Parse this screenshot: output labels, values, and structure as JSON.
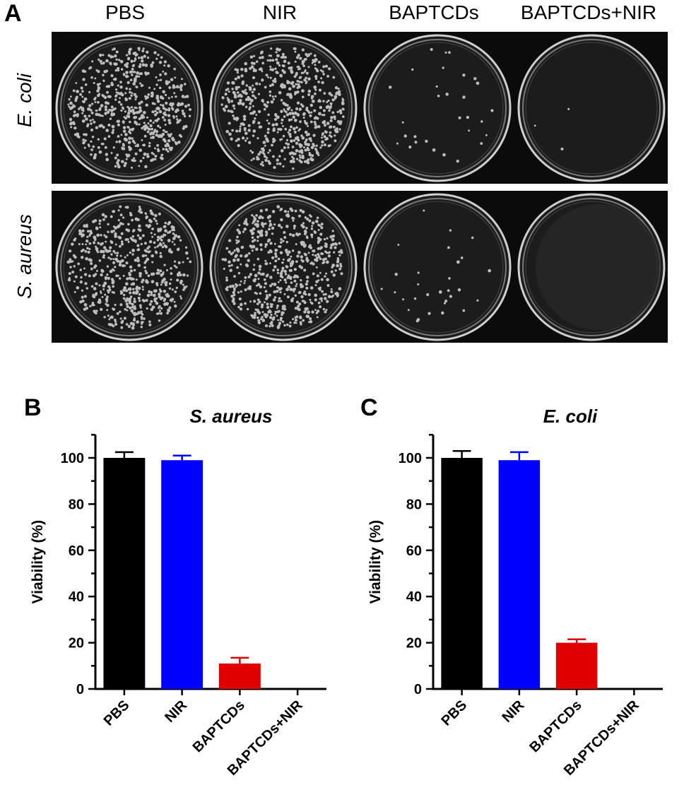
{
  "panel_a": {
    "letter": "A",
    "columns": [
      "PBS",
      "NIR",
      "BAPTCDs",
      "BAPTCDs+NIR"
    ],
    "rows": [
      {
        "label": "E. coli",
        "colony_density": [
          "dense",
          "dense",
          "sparse",
          "very-sparse"
        ]
      },
      {
        "label": "S. aureus",
        "colony_density": [
          "dense",
          "dense",
          "sparse",
          "none"
        ]
      }
    ]
  },
  "panel_b": {
    "letter": "B"
  },
  "panel_c": {
    "letter": "C"
  },
  "chart_data": [
    {
      "type": "bar",
      "title": "S. aureus",
      "xlabel": "",
      "ylabel": "Viability (%)",
      "categories": [
        "PBS",
        "NIR",
        "BAPTCDs",
        "BAPTCDs+NIR"
      ],
      "values": [
        100,
        99,
        11,
        0
      ],
      "errors": [
        2.5,
        2,
        2.5,
        0
      ],
      "colors": [
        "#000000",
        "#0000ff",
        "#e00000",
        "#000000"
      ],
      "ylim": [
        0,
        110
      ],
      "yticks": [
        "0",
        "20",
        "40",
        "60",
        "80",
        "100"
      ],
      "grid": false
    },
    {
      "type": "bar",
      "title": "E. coli",
      "xlabel": "",
      "ylabel": "Viability (%)",
      "categories": [
        "PBS",
        "NIR",
        "BAPTCDs",
        "BAPTCDs+NIR"
      ],
      "values": [
        100,
        99,
        20,
        0
      ],
      "errors": [
        3,
        3.5,
        1.5,
        0
      ],
      "colors": [
        "#000000",
        "#0000ff",
        "#e00000",
        "#000000"
      ],
      "ylim": [
        0,
        110
      ],
      "yticks": [
        "0",
        "20",
        "40",
        "60",
        "80",
        "100"
      ],
      "grid": false
    }
  ]
}
